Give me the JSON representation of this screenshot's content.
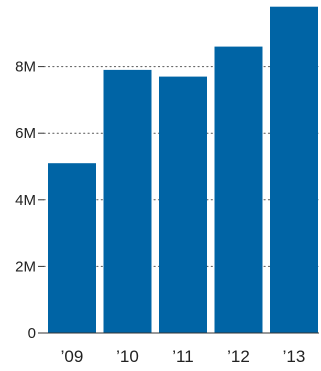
{
  "colors": {
    "bar": "#0064A5",
    "grid": "#555555",
    "axis": "#333333",
    "text": "#222222"
  },
  "chart_data": {
    "type": "bar",
    "title": "",
    "xlabel": "",
    "ylabel": "",
    "categories": [
      "’09",
      "’10",
      "’11",
      "’12",
      "’13"
    ],
    "values": [
      5.1,
      7.9,
      7.7,
      8.6,
      9.8
    ],
    "ylim": [
      0,
      10
    ],
    "y_ticks": [
      {
        "value": 0,
        "label": "0"
      },
      {
        "value": 2,
        "label": "2M"
      },
      {
        "value": 4,
        "label": "4M"
      },
      {
        "value": 6,
        "label": "6M"
      },
      {
        "value": 8,
        "label": "8M"
      }
    ],
    "grid": "dotted-horizontal",
    "legend": "none"
  }
}
